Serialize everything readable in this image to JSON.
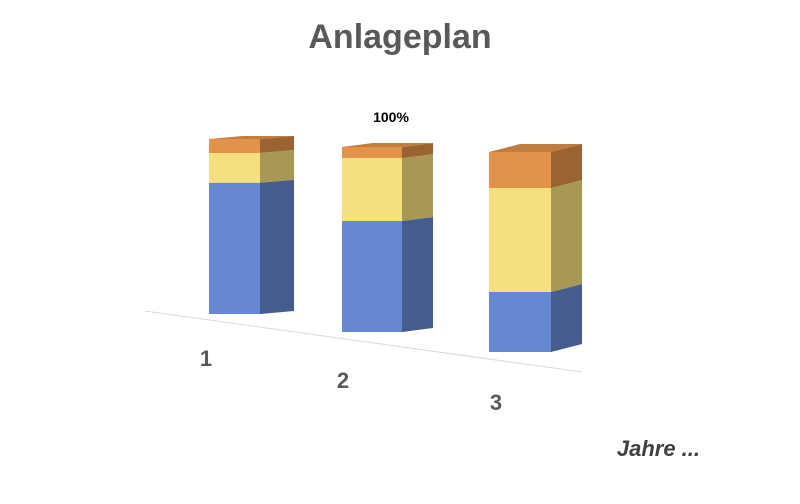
{
  "chart_data": {
    "type": "bar",
    "stacked": true,
    "three_d": true,
    "title": "Anlageplan",
    "xlabel": "Jahre ...",
    "ylabel": "",
    "categories": [
      "1",
      "2",
      "3"
    ],
    "series": [
      {
        "color": "#6687d1",
        "values": [
          0.75,
          0.6,
          0.3
        ]
      },
      {
        "color": "#f5e07f",
        "values": [
          0.17,
          0.34,
          0.52
        ]
      },
      {
        "color": "#e3924a",
        "values": [
          0.08,
          0.06,
          0.18
        ]
      }
    ],
    "ylim": [
      0,
      1
    ],
    "data_labels": [
      {
        "category": "2",
        "text": "100%"
      }
    ],
    "grid": false,
    "legend": "none"
  }
}
